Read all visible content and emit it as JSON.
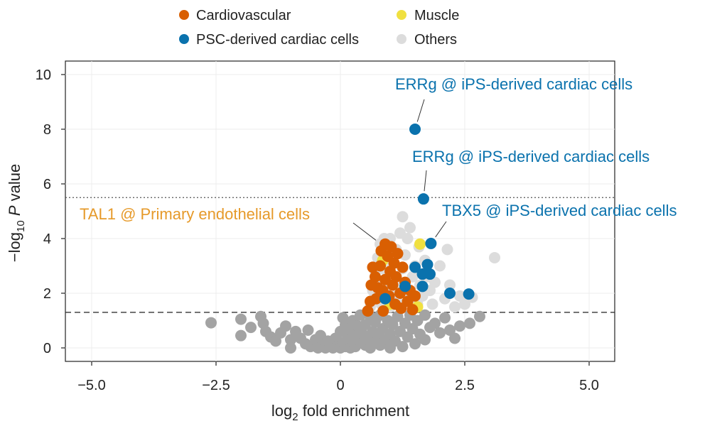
{
  "chart_data": {
    "type": "scatter",
    "title": "",
    "xlabel": {
      "prefix": "log",
      "sub": "2",
      "suffix": " fold enrichment"
    },
    "ylabel": {
      "prefix": "−log",
      "sub": "10",
      "italic": " P",
      "suffix": " value"
    },
    "xlim": [
      -5.5,
      5.5
    ],
    "ylim": [
      -0.5,
      10.5
    ],
    "xticks": [
      -5.0,
      -2.5,
      0,
      2.5,
      5.0
    ],
    "xtick_labels": [
      "−5.0",
      "−2.5",
      "0",
      "2.5",
      "5.0"
    ],
    "yticks": [
      0,
      2,
      4,
      6,
      8,
      10
    ],
    "ytick_labels": [
      "0",
      "2",
      "4",
      "6",
      "8",
      "10"
    ],
    "grid": true,
    "legend_position": "top",
    "reference_lines": [
      {
        "name": "nominal-significance",
        "y": 1.3,
        "style": "dashed"
      },
      {
        "name": "bonferroni-threshold",
        "y": 5.5,
        "style": "dotted"
      }
    ],
    "colors": {
      "Cardiovascular": "#d95f02",
      "Muscle": "#f0e040",
      "PSC-derived cardiac cells": "#0a72ad",
      "Others": "#dcdcdc",
      "NotSignificant": "#a3a3a3",
      "TAL1_label": "#e69a2a",
      "PSC_label": "#0a72ad"
    },
    "legend": [
      {
        "label": "Cardiovascular",
        "key": "Cardiovascular"
      },
      {
        "label": "Muscle",
        "key": "Muscle"
      },
      {
        "label": "PSC-derived cardiac cells",
        "key": "PSC-derived cardiac cells"
      },
      {
        "label": "Others",
        "key": "Others"
      }
    ],
    "series": [
      {
        "name": "NotSignificant",
        "points": [
          [
            -2.6,
            0.92
          ],
          [
            -2.0,
            1.05
          ],
          [
            -2.0,
            0.45
          ],
          [
            -1.8,
            0.75
          ],
          [
            -1.6,
            1.15
          ],
          [
            -1.55,
            0.9
          ],
          [
            -1.5,
            0.6
          ],
          [
            -1.4,
            0.4
          ],
          [
            -1.3,
            0.25
          ],
          [
            -1.2,
            0.55
          ],
          [
            -1.1,
            0.8
          ],
          [
            -1.0,
            0.3
          ],
          [
            -1.0,
            0.0
          ],
          [
            -0.9,
            0.6
          ],
          [
            -0.8,
            0.35
          ],
          [
            -0.7,
            0.15
          ],
          [
            -0.65,
            0.65
          ],
          [
            -0.6,
            0.05
          ],
          [
            -0.5,
            0.3
          ],
          [
            -0.45,
            0.0
          ],
          [
            -0.4,
            0.45
          ],
          [
            -0.35,
            0.15
          ],
          [
            -0.3,
            0.0
          ],
          [
            -0.25,
            0.25
          ],
          [
            -0.2,
            0.1
          ],
          [
            -0.15,
            0.0
          ],
          [
            -0.1,
            0.35
          ],
          [
            -0.05,
            0.05
          ],
          [
            0.0,
            0.0
          ],
          [
            0.0,
            0.6
          ],
          [
            0.05,
            0.2
          ],
          [
            0.05,
            1.1
          ],
          [
            0.1,
            0.05
          ],
          [
            0.1,
            0.85
          ],
          [
            0.15,
            0.35
          ],
          [
            0.2,
            0.0
          ],
          [
            0.2,
            0.65
          ],
          [
            0.25,
            1.0
          ],
          [
            0.25,
            0.2
          ],
          [
            0.3,
            0.45
          ],
          [
            0.3,
            0.05
          ],
          [
            0.35,
            0.8
          ],
          [
            0.4,
            0.25
          ],
          [
            0.4,
            1.2
          ],
          [
            0.45,
            0.5
          ],
          [
            0.5,
            0.1
          ],
          [
            0.5,
            0.85
          ],
          [
            0.55,
            0.35
          ],
          [
            0.6,
            1.15
          ],
          [
            0.6,
            0.0
          ],
          [
            0.65,
            0.6
          ],
          [
            0.7,
            0.2
          ],
          [
            0.7,
            0.95
          ],
          [
            0.75,
            0.45
          ],
          [
            0.8,
            1.2
          ],
          [
            0.8,
            0.1
          ],
          [
            0.85,
            0.7
          ],
          [
            0.9,
            0.3
          ],
          [
            0.95,
            1.0
          ],
          [
            1.0,
            0.5
          ],
          [
            1.0,
            0.0
          ],
          [
            1.05,
            0.85
          ],
          [
            1.1,
            0.25
          ],
          [
            1.15,
            1.15
          ],
          [
            1.2,
            0.6
          ],
          [
            1.25,
            0.05
          ],
          [
            1.3,
            0.9
          ],
          [
            1.35,
            0.4
          ],
          [
            1.4,
            1.2
          ],
          [
            1.45,
            0.7
          ],
          [
            1.5,
            0.15
          ],
          [
            1.55,
            1.0
          ],
          [
            1.6,
            0.5
          ],
          [
            1.7,
            0.3
          ],
          [
            1.7,
            1.2
          ],
          [
            1.8,
            0.75
          ],
          [
            1.9,
            0.9
          ],
          [
            2.0,
            0.55
          ],
          [
            2.1,
            1.1
          ],
          [
            2.2,
            0.65
          ],
          [
            2.3,
            0.35
          ],
          [
            2.4,
            0.8
          ],
          [
            2.6,
            0.9
          ],
          [
            2.8,
            1.15
          ]
        ]
      },
      {
        "name": "Others",
        "points": [
          [
            0.6,
            1.5
          ],
          [
            0.65,
            2.1
          ],
          [
            0.7,
            2.8
          ],
          [
            0.7,
            1.8
          ],
          [
            0.75,
            3.3
          ],
          [
            0.78,
            2.4
          ],
          [
            0.8,
            3.8
          ],
          [
            0.82,
            1.6
          ],
          [
            0.85,
            2.9
          ],
          [
            0.88,
            4.0
          ],
          [
            0.9,
            2.2
          ],
          [
            0.95,
            3.5
          ],
          [
            1.0,
            1.5
          ],
          [
            1.0,
            2.6
          ],
          [
            1.05,
            3.1
          ],
          [
            1.1,
            1.9
          ],
          [
            1.12,
            3.6
          ],
          [
            1.15,
            2.4
          ],
          [
            1.2,
            1.6
          ],
          [
            1.2,
            4.2
          ],
          [
            1.25,
            2.9
          ],
          [
            1.3,
            3.4
          ],
          [
            1.35,
            2.0
          ],
          [
            1.4,
            4.4
          ],
          [
            1.45,
            2.6
          ],
          [
            1.5,
            3.0
          ],
          [
            1.55,
            1.6
          ],
          [
            1.58,
            3.7
          ],
          [
            1.6,
            2.3
          ],
          [
            1.65,
            1.9
          ],
          [
            1.7,
            3.2
          ],
          [
            1.75,
            2.6
          ],
          [
            1.8,
            2.1
          ],
          [
            1.85,
            1.6
          ],
          [
            1.9,
            2.4
          ],
          [
            2.0,
            3.0
          ],
          [
            2.1,
            1.8
          ],
          [
            2.2,
            2.3
          ],
          [
            2.3,
            1.5
          ],
          [
            2.4,
            1.9
          ],
          [
            2.5,
            1.6
          ],
          [
            2.65,
            1.85
          ],
          [
            2.15,
            3.6
          ],
          [
            3.1,
            3.3
          ],
          [
            1.25,
            4.8
          ],
          [
            1.35,
            4.0
          ],
          [
            1.0,
            4.0
          ]
        ]
      },
      {
        "name": "Muscle",
        "points": [
          [
            1.6,
            3.8
          ],
          [
            0.85,
            3.2
          ],
          [
            1.0,
            1.6
          ],
          [
            1.55,
            1.5
          ]
        ]
      },
      {
        "name": "Cardiovascular",
        "points": [
          [
            0.55,
            1.35
          ],
          [
            0.6,
            1.7
          ],
          [
            0.62,
            2.3
          ],
          [
            0.65,
            2.95
          ],
          [
            0.7,
            2.6
          ],
          [
            0.72,
            1.8
          ],
          [
            0.75,
            2.2
          ],
          [
            0.8,
            3.0
          ],
          [
            0.82,
            3.55
          ],
          [
            0.85,
            2.1
          ],
          [
            0.86,
            1.35
          ],
          [
            0.9,
            3.8
          ],
          [
            0.9,
            2.5
          ],
          [
            0.95,
            3.35
          ],
          [
            0.98,
            1.9
          ],
          [
            1.0,
            2.8
          ],
          [
            1.02,
            3.7
          ],
          [
            1.05,
            2.3
          ],
          [
            1.08,
            3.1
          ],
          [
            1.1,
            1.6
          ],
          [
            1.12,
            2.6
          ],
          [
            1.15,
            3.45
          ],
          [
            1.2,
            2.0
          ],
          [
            1.22,
            1.45
          ],
          [
            1.25,
            2.95
          ],
          [
            1.3,
            2.4
          ],
          [
            1.35,
            1.7
          ],
          [
            1.4,
            2.1
          ],
          [
            1.45,
            1.4
          ],
          [
            1.5,
            1.9
          ]
        ]
      },
      {
        "name": "PSC-derived cardiac cells",
        "points": [
          [
            1.5,
            8.0
          ],
          [
            1.67,
            5.45
          ],
          [
            1.82,
            3.82
          ],
          [
            1.5,
            2.95
          ],
          [
            1.75,
            3.05
          ],
          [
            1.65,
            2.7
          ],
          [
            1.8,
            2.7
          ],
          [
            1.3,
            2.25
          ],
          [
            1.65,
            2.25
          ],
          [
            2.2,
            2.0
          ],
          [
            2.58,
            1.97
          ],
          [
            0.9,
            1.8
          ]
        ]
      }
    ],
    "annotations": [
      {
        "name": "ERRg-label-top",
        "text": "ERRg @ iPS-derived cardiac cells",
        "color_key": "PSC_label",
        "target": [
          1.5,
          8.0
        ]
      },
      {
        "name": "ERRg-label-mid",
        "text": "ERRg @ iPS-derived cardiac cells",
        "color_key": "PSC_label",
        "target": [
          1.67,
          5.45
        ]
      },
      {
        "name": "TBX5-label",
        "text": "TBX5 @ iPS-derived cardiac cells",
        "color_key": "PSC_label",
        "target": [
          1.82,
          3.82
        ]
      },
      {
        "name": "TAL1-label",
        "text": "TAL1 @ Primary endothelial cells",
        "color_key": "TAL1_label",
        "target": [
          0.85,
          3.75
        ]
      }
    ]
  }
}
